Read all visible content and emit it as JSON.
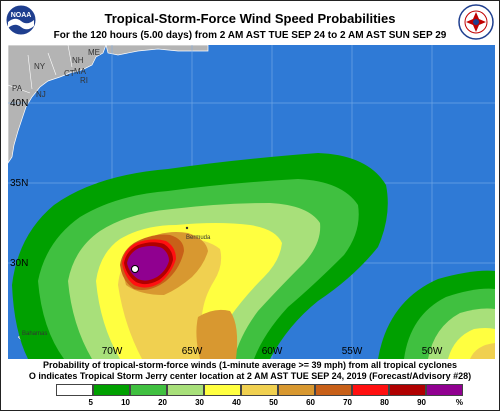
{
  "header": {
    "title": "Tropical-Storm-Force Wind Speed Probabilities",
    "subtitle": "For the 120 hours (5.00 days) from 2 AM AST TUE SEP 24 to 2 AM AST SUN SEP 29"
  },
  "logos": {
    "left_text": "NOAA",
    "right_text": "NATIONAL WEATHER SERVICE"
  },
  "map": {
    "lat_labels": [
      "40N",
      "35N",
      "30N"
    ],
    "lon_labels": [
      "70W",
      "65W",
      "60W",
      "55W",
      "50W"
    ],
    "place_labels": [
      "ME",
      "NH",
      "MA",
      "CT",
      "RI",
      "NY",
      "PA",
      "NJ",
      "Bermuda",
      "Bahamas"
    ],
    "storm_marker": "Tropical Storm Jerry center",
    "colors": {
      "ocean": "#2f7ad6",
      "land": "#b4b4b4",
      "grid": "#7fb0e8"
    }
  },
  "caption": {
    "line1": "Probability of tropical-storm-force winds (1-minute average >= 39 mph) from all tropical cyclones",
    "line2": "O indicates Tropical Storm Jerry center location at 2 AM AST TUE SEP 24, 2019 (Forecast/Advisory #28)"
  },
  "legend": {
    "colors": [
      "#ffffff",
      "#00a000",
      "#40c040",
      "#a8e07a",
      "#ffff40",
      "#f0d050",
      "#d89830",
      "#c86018",
      "#ff1010",
      "#b00000",
      "#900090"
    ],
    "labels": [
      "5",
      "10",
      "20",
      "30",
      "40",
      "50",
      "60",
      "70",
      "80",
      "90",
      "%"
    ]
  }
}
